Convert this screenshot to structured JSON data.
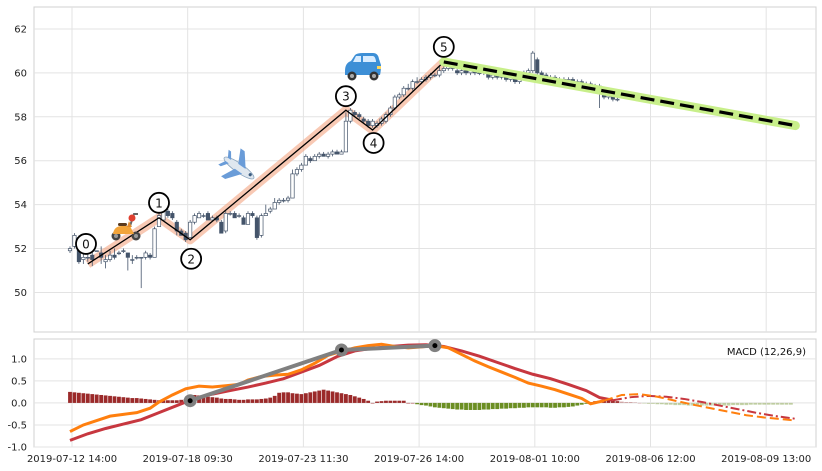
{
  "chart_data": [
    {
      "type": "candlestick",
      "title": "",
      "ylim": [
        48.2,
        63.0
      ],
      "yticks": [
        "50",
        "52",
        "54",
        "56",
        "58",
        "60",
        "62"
      ],
      "grid": true,
      "colors": {
        "candle": "#44546a",
        "wave_line": "#000000",
        "wave_band": "#f4a582",
        "projection": "#000000",
        "projection_band": "#c8ef8a"
      },
      "candles": [
        [
          51.9,
          52.0,
          52.1,
          51.8
        ],
        [
          52.1,
          52.6,
          52.7,
          52.0
        ],
        [
          52.5,
          51.4,
          52.6,
          51.3
        ],
        [
          51.5,
          51.6,
          51.8,
          51.3
        ],
        [
          51.6,
          51.6,
          51.9,
          51.4
        ],
        [
          51.7,
          51.5,
          52.2,
          51.2
        ],
        [
          51.9,
          51.9,
          51.9,
          51.9
        ],
        [
          51.8,
          51.6,
          52.1,
          51.3
        ],
        [
          51.4,
          51.5,
          51.7,
          51.1
        ],
        [
          51.5,
          51.7,
          51.9,
          51.4
        ],
        [
          51.7,
          51.6,
          52.0,
          51.5
        ],
        [
          51.8,
          51.8,
          51.9,
          51.7
        ],
        [
          51.9,
          51.9,
          52.0,
          51.8
        ],
        [
          51.8,
          51.6,
          51.8,
          51.0
        ],
        [
          51.5,
          51.5,
          51.7,
          51.3
        ],
        [
          51.6,
          51.6,
          51.7,
          51.5
        ],
        [
          51.6,
          51.6,
          51.6,
          50.2
        ],
        [
          51.6,
          51.8,
          51.9,
          51.5
        ],
        [
          51.7,
          51.6,
          51.8,
          51.5
        ],
        [
          51.6,
          52.9,
          53.0,
          51.6
        ],
        [
          53.0,
          53.5,
          53.7,
          53.0
        ],
        [
          53.3,
          53.7,
          53.8,
          53.3
        ],
        [
          53.7,
          53.5,
          53.8,
          53.4
        ],
        [
          53.6,
          53.4,
          53.7,
          53.3
        ],
        [
          53.2,
          52.8,
          53.3,
          52.6
        ],
        [
          52.8,
          52.6,
          52.9,
          52.6
        ],
        [
          52.7,
          52.4,
          52.8,
          52.3
        ],
        [
          52.5,
          53.2,
          53.3,
          52.5
        ],
        [
          53.2,
          53.5,
          53.6,
          53.1
        ],
        [
          53.4,
          53.6,
          53.7,
          53.4
        ],
        [
          53.5,
          53.5,
          53.6,
          53.4
        ],
        [
          53.6,
          53.3,
          53.7,
          53.3
        ],
        [
          53.3,
          53.4,
          53.5,
          53.3
        ],
        [
          53.4,
          53.3,
          53.5,
          53.2
        ],
        [
          53.2,
          52.7,
          53.3,
          52.7
        ],
        [
          52.8,
          53.6,
          53.7,
          52.7
        ],
        [
          53.6,
          53.6,
          53.7,
          53.5
        ],
        [
          53.6,
          53.4,
          53.7,
          53.4
        ],
        [
          53.5,
          53.5,
          53.6,
          53.4
        ],
        [
          53.4,
          53.1,
          53.5,
          53.1
        ],
        [
          53.1,
          53.6,
          53.7,
          53.1
        ],
        [
          53.6,
          53.5,
          53.7,
          53.4
        ],
        [
          53.4,
          52.5,
          53.5,
          52.4
        ],
        [
          52.6,
          53.5,
          53.6,
          52.5
        ],
        [
          53.5,
          53.6,
          54.0,
          53.5
        ],
        [
          53.7,
          53.8,
          53.9,
          53.6
        ],
        [
          53.8,
          54.1,
          54.3,
          53.8
        ],
        [
          54.1,
          54.2,
          54.3,
          54.0
        ],
        [
          54.2,
          54.2,
          54.3,
          54.1
        ],
        [
          54.2,
          54.3,
          54.4,
          54.1
        ],
        [
          54.3,
          55.4,
          55.6,
          54.3
        ],
        [
          55.4,
          55.6,
          55.7,
          55.3
        ],
        [
          55.6,
          55.8,
          55.9,
          55.5
        ],
        [
          55.8,
          56.2,
          56.3,
          55.8
        ],
        [
          56.1,
          56.0,
          56.2,
          55.9
        ],
        [
          56.0,
          56.2,
          56.3,
          56.0
        ],
        [
          56.2,
          56.3,
          56.4,
          56.1
        ],
        [
          56.3,
          56.2,
          56.4,
          56.2
        ],
        [
          56.2,
          56.3,
          56.4,
          56.1
        ],
        [
          56.3,
          56.4,
          56.5,
          56.2
        ],
        [
          56.4,
          56.3,
          56.5,
          56.3
        ],
        [
          56.3,
          56.4,
          56.5,
          56.3
        ],
        [
          56.4,
          57.8,
          58.2,
          56.4
        ],
        [
          57.8,
          58.3,
          58.4,
          57.7
        ],
        [
          58.2,
          58.1,
          58.3,
          58.0
        ],
        [
          58.1,
          58.0,
          58.2,
          57.9
        ],
        [
          57.9,
          57.8,
          58.0,
          57.7
        ],
        [
          57.8,
          57.6,
          57.9,
          57.5
        ],
        [
          57.6,
          57.8,
          57.9,
          57.5
        ],
        [
          57.6,
          57.7,
          57.8,
          57.5
        ],
        [
          57.7,
          57.9,
          58.0,
          57.6
        ],
        [
          57.8,
          58.1,
          58.2,
          57.7
        ],
        [
          58.1,
          58.4,
          58.5,
          58.0
        ],
        [
          58.4,
          58.9,
          59.0,
          58.3
        ],
        [
          58.9,
          59.0,
          59.1,
          58.8
        ],
        [
          59.0,
          59.3,
          59.4,
          58.9
        ],
        [
          59.3,
          59.3,
          59.5,
          59.2
        ],
        [
          59.3,
          59.6,
          59.7,
          59.2
        ],
        [
          59.6,
          59.6,
          59.8,
          59.5
        ],
        [
          59.6,
          59.7,
          59.8,
          59.5
        ],
        [
          59.7,
          59.8,
          59.9,
          59.6
        ],
        [
          59.8,
          59.9,
          60.0,
          59.7
        ],
        [
          59.9,
          59.9,
          60.0,
          59.8
        ],
        [
          59.9,
          60.1,
          60.3,
          59.8
        ],
        [
          60.1,
          60.2,
          60.4,
          60.0
        ],
        [
          60.2,
          60.3,
          60.5,
          60.1
        ],
        [
          60.3,
          60.2,
          60.5,
          60.1
        ],
        [
          60.1,
          60.0,
          60.2,
          59.9
        ],
        [
          60.0,
          60.1,
          60.2,
          59.9
        ],
        [
          60.1,
          60.0,
          60.2,
          59.9
        ],
        [
          60.0,
          60.1,
          60.2,
          59.9
        ],
        [
          60.1,
          60.0,
          60.2,
          59.9
        ],
        [
          60.0,
          60.0,
          60.1,
          59.9
        ],
        [
          60.0,
          60.1,
          60.3,
          59.9
        ],
        [
          60.1,
          59.8,
          60.2,
          59.7
        ],
        [
          59.8,
          59.9,
          60.0,
          59.7
        ],
        [
          59.9,
          59.8,
          60.0,
          59.7
        ],
        [
          59.8,
          59.9,
          60.0,
          59.7
        ],
        [
          59.9,
          59.7,
          60.0,
          59.6
        ],
        [
          59.7,
          59.8,
          59.9,
          59.6
        ],
        [
          59.8,
          59.6,
          59.9,
          59.5
        ],
        [
          59.6,
          59.8,
          59.9,
          59.5
        ],
        [
          59.8,
          60.0,
          60.1,
          59.7
        ],
        [
          60.0,
          60.1,
          60.2,
          59.9
        ],
        [
          60.1,
          60.9,
          61.0,
          60.0
        ],
        [
          60.6,
          60.0,
          60.7,
          59.9
        ],
        [
          60.0,
          59.9,
          60.1,
          59.8
        ],
        [
          59.9,
          59.7,
          60.0,
          59.6
        ],
        [
          59.7,
          59.8,
          59.9,
          59.6
        ],
        [
          59.8,
          59.6,
          59.9,
          59.5
        ],
        [
          59.6,
          59.7,
          59.8,
          59.5
        ],
        [
          59.7,
          59.6,
          59.8,
          59.5
        ],
        [
          59.6,
          59.7,
          59.8,
          59.5
        ],
        [
          59.7,
          59.5,
          59.8,
          59.4
        ],
        [
          59.5,
          59.6,
          59.7,
          59.4
        ],
        [
          59.6,
          59.4,
          59.7,
          59.3
        ],
        [
          59.4,
          59.5,
          59.6,
          59.3
        ],
        [
          59.5,
          59.3,
          59.6,
          59.2
        ],
        [
          59.3,
          59.4,
          59.5,
          59.2
        ],
        [
          59.4,
          59.1,
          59.5,
          58.4
        ],
        [
          59.1,
          58.9,
          59.2,
          58.8
        ],
        [
          58.9,
          59.0,
          59.1,
          58.8
        ],
        [
          59.0,
          58.8,
          59.1,
          58.7
        ],
        [
          58.8,
          58.8,
          58.9,
          58.7
        ]
      ],
      "wave": {
        "labels": [
          "0",
          "1",
          "2",
          "3",
          "4",
          "5"
        ],
        "points": [
          [
            4,
            51.3
          ],
          [
            20,
            53.4
          ],
          [
            27,
            52.4
          ],
          [
            62,
            58.3
          ],
          [
            68,
            57.4
          ],
          [
            84,
            60.5
          ]
        ]
      },
      "projection": {
        "from": [
          84,
          60.5
        ],
        "to": [
          163,
          57.6
        ]
      }
    },
    {
      "type": "macd",
      "legend": "MACD (12,26,9)",
      "ylim": [
        -1.0,
        1.45
      ],
      "yticks": [
        "-1.0",
        "-0.5",
        "0.0",
        "0.5",
        "1.0"
      ],
      "x_tick_labels": [
        "2019-07-12 14:00",
        "2019-07-18 09:30",
        "2019-07-23 11:30",
        "2019-07-26 14:00",
        "2019-08-01 10:00",
        "2019-08-06 12:00",
        "2019-08-09 13:00"
      ],
      "colors": {
        "macd": "#ff7f0e",
        "signal": "#c7373f",
        "hist_pos": "#9b2a2a",
        "hist_neg": "#6b8e23",
        "trend": "#808080"
      },
      "macd": [
        [
          0,
          -0.65
        ],
        [
          3,
          -0.5
        ],
        [
          6,
          -0.4
        ],
        [
          9,
          -0.3
        ],
        [
          12,
          -0.26
        ],
        [
          15,
          -0.22
        ],
        [
          18,
          -0.12
        ],
        [
          20,
          0.02
        ],
        [
          23,
          0.18
        ],
        [
          26,
          0.32
        ],
        [
          29,
          0.38
        ],
        [
          32,
          0.36
        ],
        [
          35,
          0.39
        ],
        [
          38,
          0.42
        ],
        [
          40,
          0.52
        ],
        [
          43,
          0.6
        ],
        [
          46,
          0.63
        ],
        [
          49,
          0.65
        ],
        [
          52,
          0.75
        ],
        [
          55,
          0.9
        ],
        [
          58,
          1.08
        ],
        [
          61,
          1.17
        ],
        [
          64,
          1.25
        ],
        [
          67,
          1.3
        ],
        [
          70,
          1.33
        ],
        [
          73,
          1.28
        ],
        [
          76,
          1.25
        ],
        [
          79,
          1.27
        ],
        [
          82,
          1.3
        ],
        [
          85,
          1.25
        ],
        [
          88,
          1.1
        ],
        [
          91,
          0.95
        ],
        [
          94,
          0.82
        ],
        [
          97,
          0.7
        ],
        [
          100,
          0.58
        ],
        [
          103,
          0.45
        ],
        [
          106,
          0.38
        ],
        [
          109,
          0.3
        ],
        [
          112,
          0.2
        ],
        [
          115,
          0.1
        ],
        [
          117,
          -0.02
        ],
        [
          120,
          0.05
        ]
      ],
      "signal": [
        [
          0,
          -0.85
        ],
        [
          4,
          -0.7
        ],
        [
          8,
          -0.58
        ],
        [
          12,
          -0.48
        ],
        [
          16,
          -0.38
        ],
        [
          20,
          -0.22
        ],
        [
          24,
          -0.06
        ],
        [
          28,
          0.1
        ],
        [
          32,
          0.2
        ],
        [
          36,
          0.28
        ],
        [
          40,
          0.36
        ],
        [
          44,
          0.45
        ],
        [
          48,
          0.55
        ],
        [
          52,
          0.7
        ],
        [
          56,
          0.85
        ],
        [
          60,
          1.05
        ],
        [
          64,
          1.18
        ],
        [
          68,
          1.24
        ],
        [
          72,
          1.28
        ],
        [
          76,
          1.31
        ],
        [
          80,
          1.32
        ],
        [
          84,
          1.28
        ],
        [
          88,
          1.18
        ],
        [
          92,
          1.06
        ],
        [
          96,
          0.92
        ],
        [
          100,
          0.78
        ],
        [
          104,
          0.65
        ],
        [
          108,
          0.55
        ],
        [
          112,
          0.42
        ],
        [
          116,
          0.28
        ],
        [
          119,
          0.12
        ],
        [
          122,
          0.06
        ]
      ],
      "macd_proj": [
        [
          120,
          0.05
        ],
        [
          124,
          0.18
        ],
        [
          128,
          0.2
        ],
        [
          132,
          0.14
        ],
        [
          136,
          0.05
        ],
        [
          140,
          -0.04
        ],
        [
          144,
          -0.12
        ],
        [
          148,
          -0.2
        ],
        [
          152,
          -0.28
        ],
        [
          156,
          -0.33
        ],
        [
          160,
          -0.37
        ],
        [
          163,
          -0.4
        ]
      ],
      "signal_proj": [
        [
          122,
          0.06
        ],
        [
          126,
          0.13
        ],
        [
          130,
          0.16
        ],
        [
          134,
          0.14
        ],
        [
          138,
          0.09
        ],
        [
          142,
          0.02
        ],
        [
          146,
          -0.06
        ],
        [
          150,
          -0.14
        ],
        [
          154,
          -0.22
        ],
        [
          158,
          -0.29
        ],
        [
          163,
          -0.36
        ]
      ],
      "histogram": [
        0.25,
        0.24,
        0.23,
        0.22,
        0.21,
        0.2,
        0.19,
        0.18,
        0.17,
        0.16,
        0.15,
        0.14,
        0.13,
        0.12,
        0.11,
        0.11,
        0.1,
        0.09,
        0.08,
        0.07,
        0.06,
        0.06,
        0.06,
        0.06,
        0.06,
        0.07,
        0.09,
        0.13,
        0.18,
        0.17,
        0.16,
        0.14,
        0.13,
        0.12,
        0.1,
        0.09,
        0.09,
        0.08,
        0.07,
        0.07,
        0.08,
        0.08,
        0.08,
        0.09,
        0.1,
        0.12,
        0.16,
        0.23,
        0.24,
        0.24,
        0.22,
        0.21,
        0.2,
        0.22,
        0.24,
        0.26,
        0.28,
        0.3,
        0.28,
        0.26,
        0.24,
        0.22,
        0.2,
        0.18,
        0.15,
        0.12,
        0.09,
        0.05,
        0.0,
        0.03,
        0.04,
        0.05,
        0.05,
        0.05,
        0.05,
        0.05,
        0.0,
        0.0,
        -0.03,
        -0.05,
        -0.06,
        -0.08,
        -0.1,
        -0.11,
        -0.12,
        -0.13,
        -0.14,
        -0.15,
        -0.15,
        -0.16,
        -0.16,
        -0.16,
        -0.16,
        -0.15,
        -0.15,
        -0.14,
        -0.14,
        -0.13,
        -0.13,
        -0.12,
        -0.12,
        -0.11,
        -0.11,
        -0.1,
        -0.1,
        -0.1,
        -0.1,
        -0.1,
        -0.11,
        -0.11,
        -0.1,
        -0.1,
        -0.09,
        -0.08,
        -0.06,
        -0.04,
        -0.02,
        0.02,
        0.04,
        0.05,
        0.06,
        0.06,
        0.05,
        0.04
      ],
      "histogram_proj": [
        0.03,
        0.02,
        0.02,
        0.01,
        0.0,
        -0.01,
        -0.02,
        -0.02,
        -0.03,
        -0.03,
        -0.04,
        -0.04,
        -0.05,
        -0.05,
        -0.05,
        -0.06,
        -0.06,
        -0.06,
        -0.06,
        -0.06,
        -0.06,
        -0.06,
        -0.06,
        -0.06,
        -0.06,
        -0.05,
        -0.05,
        -0.05,
        -0.05,
        -0.04,
        -0.04,
        -0.04,
        -0.04,
        -0.04,
        -0.04,
        -0.04,
        -0.04,
        -0.04,
        -0.04
      ],
      "trend": {
        "points": [
          [
            27,
            0.05
          ],
          [
            61,
            1.2
          ],
          [
            82,
            1.3
          ]
        ]
      }
    }
  ],
  "icons": [
    "scooter-icon",
    "airplane-icon",
    "car-icon"
  ]
}
